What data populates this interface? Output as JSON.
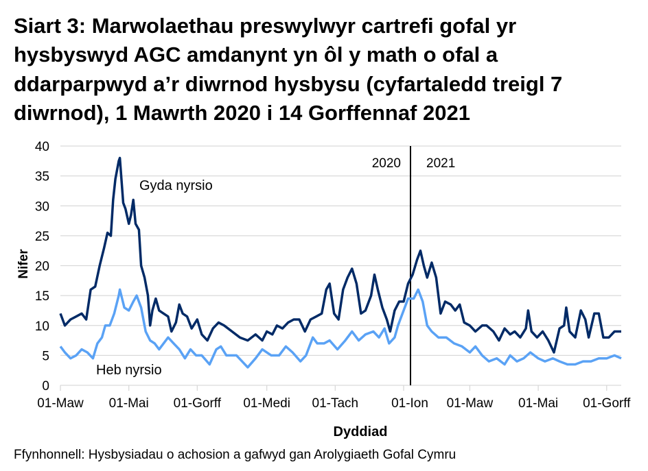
{
  "chart_data": {
    "type": "line",
    "title_lines": [
      "Siart 3: Marwolaethau preswylwyr cartrefi gofal yr",
      "hysbyswyd AGC amdanynt yn ôl y math o ofal a",
      "ddarparpwyd a’r diwrnod hysbysu (cyfartaledd treigl 7",
      "diwrnod), 1 Mawrth 2020 i 14 Gorffennaf 2021"
    ],
    "xlabel": "Dyddiad",
    "ylabel": "Nifer",
    "ylim": [
      0,
      40
    ],
    "yticks": [
      "0",
      "5",
      "10",
      "15",
      "20",
      "25",
      "30",
      "35",
      "40"
    ],
    "xrange": [
      "2020-03-01",
      "2021-07-14"
    ],
    "xticks": [
      {
        "date": "2020-03-01",
        "label": "01-Maw"
      },
      {
        "date": "2020-05-01",
        "label": "01-Mai"
      },
      {
        "date": "2020-07-01",
        "label": "01-Gorff"
      },
      {
        "date": "2020-09-01",
        "label": "01-Medi"
      },
      {
        "date": "2020-11-01",
        "label": "01-Tach"
      },
      {
        "date": "2021-01-01",
        "label": "01-Ion"
      },
      {
        "date": "2021-03-01",
        "label": "01-Maw"
      },
      {
        "date": "2021-05-01",
        "label": "01-Mai"
      },
      {
        "date": "2021-07-01",
        "label": "01-Gorff"
      }
    ],
    "grid": true,
    "year_divider": {
      "date": "2021-01-01",
      "left_label": "2020",
      "right_label": "2021"
    },
    "source": "Ffynhonnell: Hysbysiadau o achosion a gafwyd gan Arolygiaeth Gofal Cymru",
    "series": [
      {
        "name": "Gyda nyrsio",
        "color": "#002a66",
        "points": [
          [
            "2020-03-01",
            12
          ],
          [
            "2020-03-05",
            10
          ],
          [
            "2020-03-10",
            11
          ],
          [
            "2020-03-15",
            11.5
          ],
          [
            "2020-03-20",
            12
          ],
          [
            "2020-03-24",
            11
          ],
          [
            "2020-03-28",
            16
          ],
          [
            "2020-04-01",
            16.5
          ],
          [
            "2020-04-05",
            20
          ],
          [
            "2020-04-09",
            23
          ],
          [
            "2020-04-12",
            25.5
          ],
          [
            "2020-04-15",
            25
          ],
          [
            "2020-04-17",
            31
          ],
          [
            "2020-04-19",
            34.5
          ],
          [
            "2020-04-22",
            37.5
          ],
          [
            "2020-04-23",
            38
          ],
          [
            "2020-04-26",
            30.5
          ],
          [
            "2020-04-28",
            29.5
          ],
          [
            "2020-05-01",
            27
          ],
          [
            "2020-05-03",
            28.5
          ],
          [
            "2020-05-05",
            31
          ],
          [
            "2020-05-07",
            27
          ],
          [
            "2020-05-10",
            26
          ],
          [
            "2020-05-12",
            20
          ],
          [
            "2020-05-15",
            18
          ],
          [
            "2020-05-18",
            15
          ],
          [
            "2020-05-20",
            10
          ],
          [
            "2020-05-22",
            12.5
          ],
          [
            "2020-05-25",
            14.5
          ],
          [
            "2020-05-28",
            12.5
          ],
          [
            "2020-06-01",
            12
          ],
          [
            "2020-06-05",
            11.5
          ],
          [
            "2020-06-08",
            9
          ],
          [
            "2020-06-12",
            10.5
          ],
          [
            "2020-06-15",
            13.5
          ],
          [
            "2020-06-18",
            12
          ],
          [
            "2020-06-22",
            11.5
          ],
          [
            "2020-06-26",
            9.5
          ],
          [
            "2020-07-01",
            11
          ],
          [
            "2020-07-05",
            8.5
          ],
          [
            "2020-07-10",
            7.5
          ],
          [
            "2020-07-15",
            9.5
          ],
          [
            "2020-07-20",
            10.5
          ],
          [
            "2020-07-25",
            10
          ],
          [
            "2020-08-01",
            9
          ],
          [
            "2020-08-08",
            8
          ],
          [
            "2020-08-15",
            7.5
          ],
          [
            "2020-08-22",
            8.5
          ],
          [
            "2020-08-28",
            7.5
          ],
          [
            "2020-09-01",
            9
          ],
          [
            "2020-09-06",
            8.5
          ],
          [
            "2020-09-10",
            10
          ],
          [
            "2020-09-15",
            9.5
          ],
          [
            "2020-09-20",
            10.5
          ],
          [
            "2020-09-25",
            11
          ],
          [
            "2020-09-30",
            11
          ],
          [
            "2020-10-05",
            9
          ],
          [
            "2020-10-10",
            11
          ],
          [
            "2020-10-15",
            11.5
          ],
          [
            "2020-10-20",
            12
          ],
          [
            "2020-10-24",
            16
          ],
          [
            "2020-10-27",
            17
          ],
          [
            "2020-10-31",
            12
          ],
          [
            "2020-11-04",
            11
          ],
          [
            "2020-11-08",
            16
          ],
          [
            "2020-11-12",
            18
          ],
          [
            "2020-11-16",
            19.5
          ],
          [
            "2020-11-20",
            17
          ],
          [
            "2020-11-24",
            12
          ],
          [
            "2020-11-28",
            12.5
          ],
          [
            "2020-12-03",
            15
          ],
          [
            "2020-12-06",
            18.5
          ],
          [
            "2020-12-09",
            16
          ],
          [
            "2020-12-13",
            13
          ],
          [
            "2020-12-17",
            11
          ],
          [
            "2020-12-20",
            9
          ],
          [
            "2020-12-24",
            12.5
          ],
          [
            "2020-12-28",
            14
          ],
          [
            "2021-01-01",
            14
          ],
          [
            "2021-01-05",
            17
          ],
          [
            "2021-01-09",
            18.5
          ],
          [
            "2021-01-13",
            21
          ],
          [
            "2021-01-16",
            22.5
          ],
          [
            "2021-01-19",
            20
          ],
          [
            "2021-01-22",
            18
          ],
          [
            "2021-01-26",
            20.5
          ],
          [
            "2021-01-30",
            18
          ],
          [
            "2021-02-03",
            12
          ],
          [
            "2021-02-07",
            14
          ],
          [
            "2021-02-12",
            13.5
          ],
          [
            "2021-02-16",
            12.5
          ],
          [
            "2021-02-20",
            13.5
          ],
          [
            "2021-02-24",
            10.5
          ],
          [
            "2021-03-01",
            10
          ],
          [
            "2021-03-06",
            9
          ],
          [
            "2021-03-12",
            10
          ],
          [
            "2021-03-16",
            10
          ],
          [
            "2021-03-22",
            9
          ],
          [
            "2021-03-27",
            7.5
          ],
          [
            "2021-04-01",
            9.5
          ],
          [
            "2021-04-06",
            8.5
          ],
          [
            "2021-04-10",
            9
          ],
          [
            "2021-04-15",
            8
          ],
          [
            "2021-04-20",
            9.5
          ],
          [
            "2021-04-22",
            12.5
          ],
          [
            "2021-04-25",
            9
          ],
          [
            "2021-04-30",
            8
          ],
          [
            "2021-05-05",
            9
          ],
          [
            "2021-05-10",
            7.5
          ],
          [
            "2021-05-15",
            5.5
          ],
          [
            "2021-05-20",
            9.5
          ],
          [
            "2021-05-24",
            10
          ],
          [
            "2021-05-26",
            13
          ],
          [
            "2021-05-29",
            9
          ],
          [
            "2021-06-03",
            8
          ],
          [
            "2021-06-08",
            12.5
          ],
          [
            "2021-06-12",
            11
          ],
          [
            "2021-06-15",
            8
          ],
          [
            "2021-06-20",
            12
          ],
          [
            "2021-06-24",
            12
          ],
          [
            "2021-06-28",
            8
          ],
          [
            "2021-07-03",
            8
          ],
          [
            "2021-07-08",
            9
          ],
          [
            "2021-07-14",
            9
          ]
        ]
      },
      {
        "name": "Heb nyrsio",
        "color": "#5aa2f5",
        "points": [
          [
            "2020-03-01",
            6.5
          ],
          [
            "2020-03-05",
            5.5
          ],
          [
            "2020-03-10",
            4.5
          ],
          [
            "2020-03-15",
            5
          ],
          [
            "2020-03-20",
            6
          ],
          [
            "2020-03-25",
            5.5
          ],
          [
            "2020-03-30",
            4.5
          ],
          [
            "2020-04-03",
            7
          ],
          [
            "2020-04-07",
            8
          ],
          [
            "2020-04-10",
            10
          ],
          [
            "2020-04-14",
            10
          ],
          [
            "2020-04-18",
            12
          ],
          [
            "2020-04-22",
            15
          ],
          [
            "2020-04-23",
            16
          ],
          [
            "2020-04-27",
            13
          ],
          [
            "2020-05-01",
            12.5
          ],
          [
            "2020-05-05",
            14
          ],
          [
            "2020-05-08",
            15
          ],
          [
            "2020-05-12",
            13
          ],
          [
            "2020-05-16",
            9
          ],
          [
            "2020-05-20",
            7.5
          ],
          [
            "2020-05-24",
            7
          ],
          [
            "2020-05-28",
            6
          ],
          [
            "2020-06-01",
            7
          ],
          [
            "2020-06-05",
            8
          ],
          [
            "2020-06-10",
            7
          ],
          [
            "2020-06-15",
            6
          ],
          [
            "2020-06-20",
            4.5
          ],
          [
            "2020-06-25",
            6
          ],
          [
            "2020-06-30",
            5
          ],
          [
            "2020-07-05",
            5
          ],
          [
            "2020-07-12",
            3.5
          ],
          [
            "2020-07-18",
            6
          ],
          [
            "2020-07-22",
            6.5
          ],
          [
            "2020-07-27",
            5
          ],
          [
            "2020-08-05",
            5
          ],
          [
            "2020-08-15",
            3
          ],
          [
            "2020-08-22",
            4.5
          ],
          [
            "2020-08-28",
            6
          ],
          [
            "2020-09-05",
            5
          ],
          [
            "2020-09-12",
            5
          ],
          [
            "2020-09-18",
            6.5
          ],
          [
            "2020-09-24",
            5.5
          ],
          [
            "2020-10-01",
            4
          ],
          [
            "2020-10-06",
            5
          ],
          [
            "2020-10-12",
            8
          ],
          [
            "2020-10-16",
            7
          ],
          [
            "2020-10-22",
            7
          ],
          [
            "2020-10-27",
            7.5
          ],
          [
            "2020-11-03",
            6
          ],
          [
            "2020-11-10",
            7.5
          ],
          [
            "2020-11-16",
            9
          ],
          [
            "2020-11-22",
            7.5
          ],
          [
            "2020-11-28",
            8.5
          ],
          [
            "2020-12-05",
            9
          ],
          [
            "2020-12-10",
            8
          ],
          [
            "2020-12-15",
            9.5
          ],
          [
            "2020-12-19",
            7
          ],
          [
            "2020-12-24",
            8
          ],
          [
            "2020-12-27",
            10
          ],
          [
            "2021-01-01",
            12.5
          ],
          [
            "2021-01-05",
            14.5
          ],
          [
            "2021-01-10",
            14.5
          ],
          [
            "2021-01-14",
            16
          ],
          [
            "2021-01-18",
            14
          ],
          [
            "2021-01-22",
            10
          ],
          [
            "2021-01-26",
            9
          ],
          [
            "2021-02-01",
            8
          ],
          [
            "2021-02-08",
            8
          ],
          [
            "2021-02-15",
            7
          ],
          [
            "2021-02-22",
            6.5
          ],
          [
            "2021-03-01",
            5.5
          ],
          [
            "2021-03-06",
            6.5
          ],
          [
            "2021-03-12",
            5
          ],
          [
            "2021-03-18",
            4
          ],
          [
            "2021-03-25",
            4.5
          ],
          [
            "2021-04-01",
            3.5
          ],
          [
            "2021-04-06",
            5
          ],
          [
            "2021-04-12",
            4
          ],
          [
            "2021-04-18",
            4.5
          ],
          [
            "2021-04-24",
            5.5
          ],
          [
            "2021-05-01",
            4.5
          ],
          [
            "2021-05-07",
            4
          ],
          [
            "2021-05-14",
            4.5
          ],
          [
            "2021-05-20",
            4
          ],
          [
            "2021-05-27",
            3.5
          ],
          [
            "2021-06-03",
            3.5
          ],
          [
            "2021-06-10",
            4
          ],
          [
            "2021-06-17",
            4
          ],
          [
            "2021-06-24",
            4.5
          ],
          [
            "2021-07-01",
            4.5
          ],
          [
            "2021-07-08",
            5
          ],
          [
            "2021-07-14",
            4.5
          ]
        ]
      }
    ]
  }
}
